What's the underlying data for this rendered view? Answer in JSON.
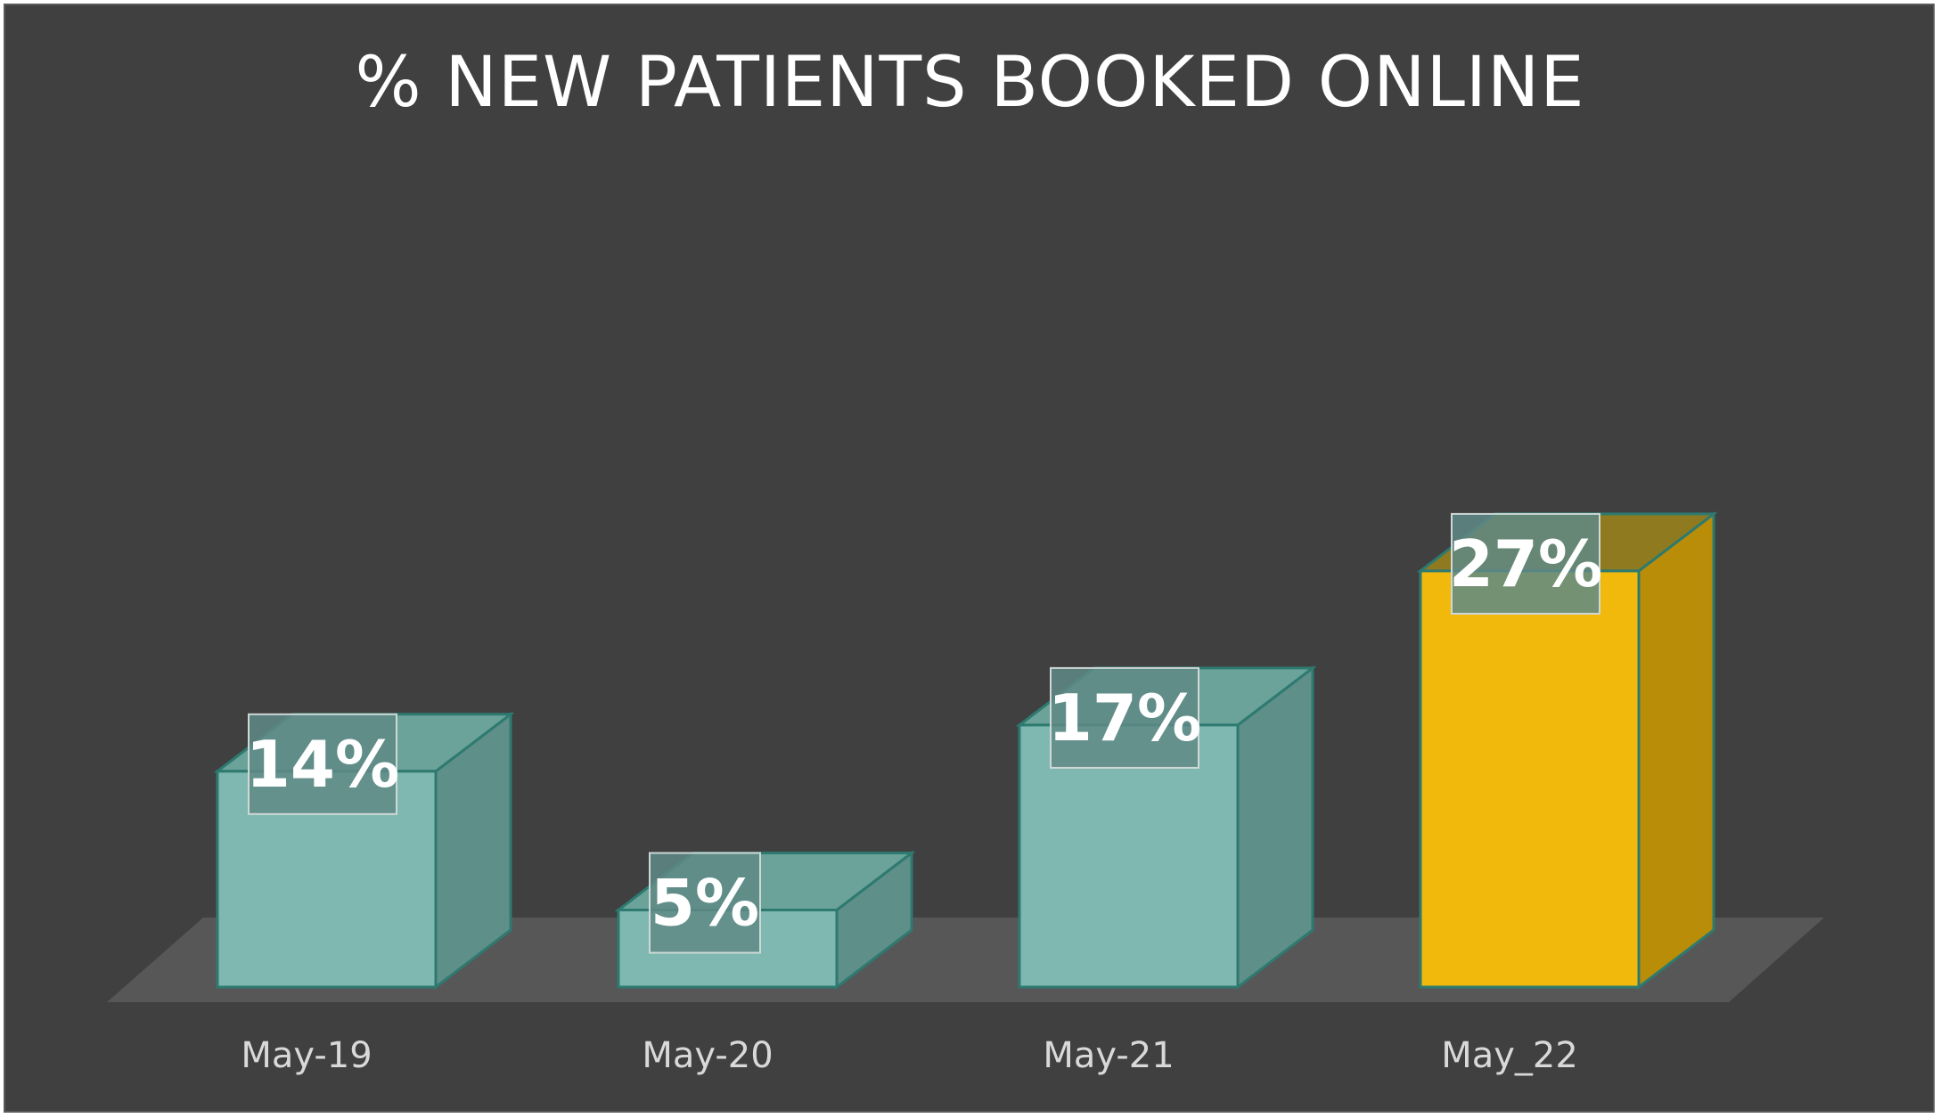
{
  "chart_data": {
    "type": "bar",
    "title": "% NEW PATIENTS BOOKED ONLINE",
    "categories": [
      "May-19",
      "May-20",
      "May-21",
      "May_22"
    ],
    "values": [
      14,
      5,
      17,
      27
    ],
    "data_labels": [
      "14%",
      "5%",
      "17%",
      "27%"
    ],
    "unit": "%",
    "ylim": [
      0,
      30
    ],
    "grid": false,
    "legend": "none",
    "style": "3d-column",
    "colors": {
      "background": "#404040",
      "floor": "#575757",
      "default_front": "#7fb8b0",
      "default_side": "#5f8f89",
      "default_top": "#6ba39b",
      "highlight_front": "#f0b90c",
      "highlight_side": "#b98d08",
      "highlight_top": "#8f7a1f",
      "bar_edge": "#2e7a70",
      "label_box_fill": "#5f8a86",
      "label_box_stroke": "#cfd8d6"
    },
    "highlight_index": 3
  }
}
